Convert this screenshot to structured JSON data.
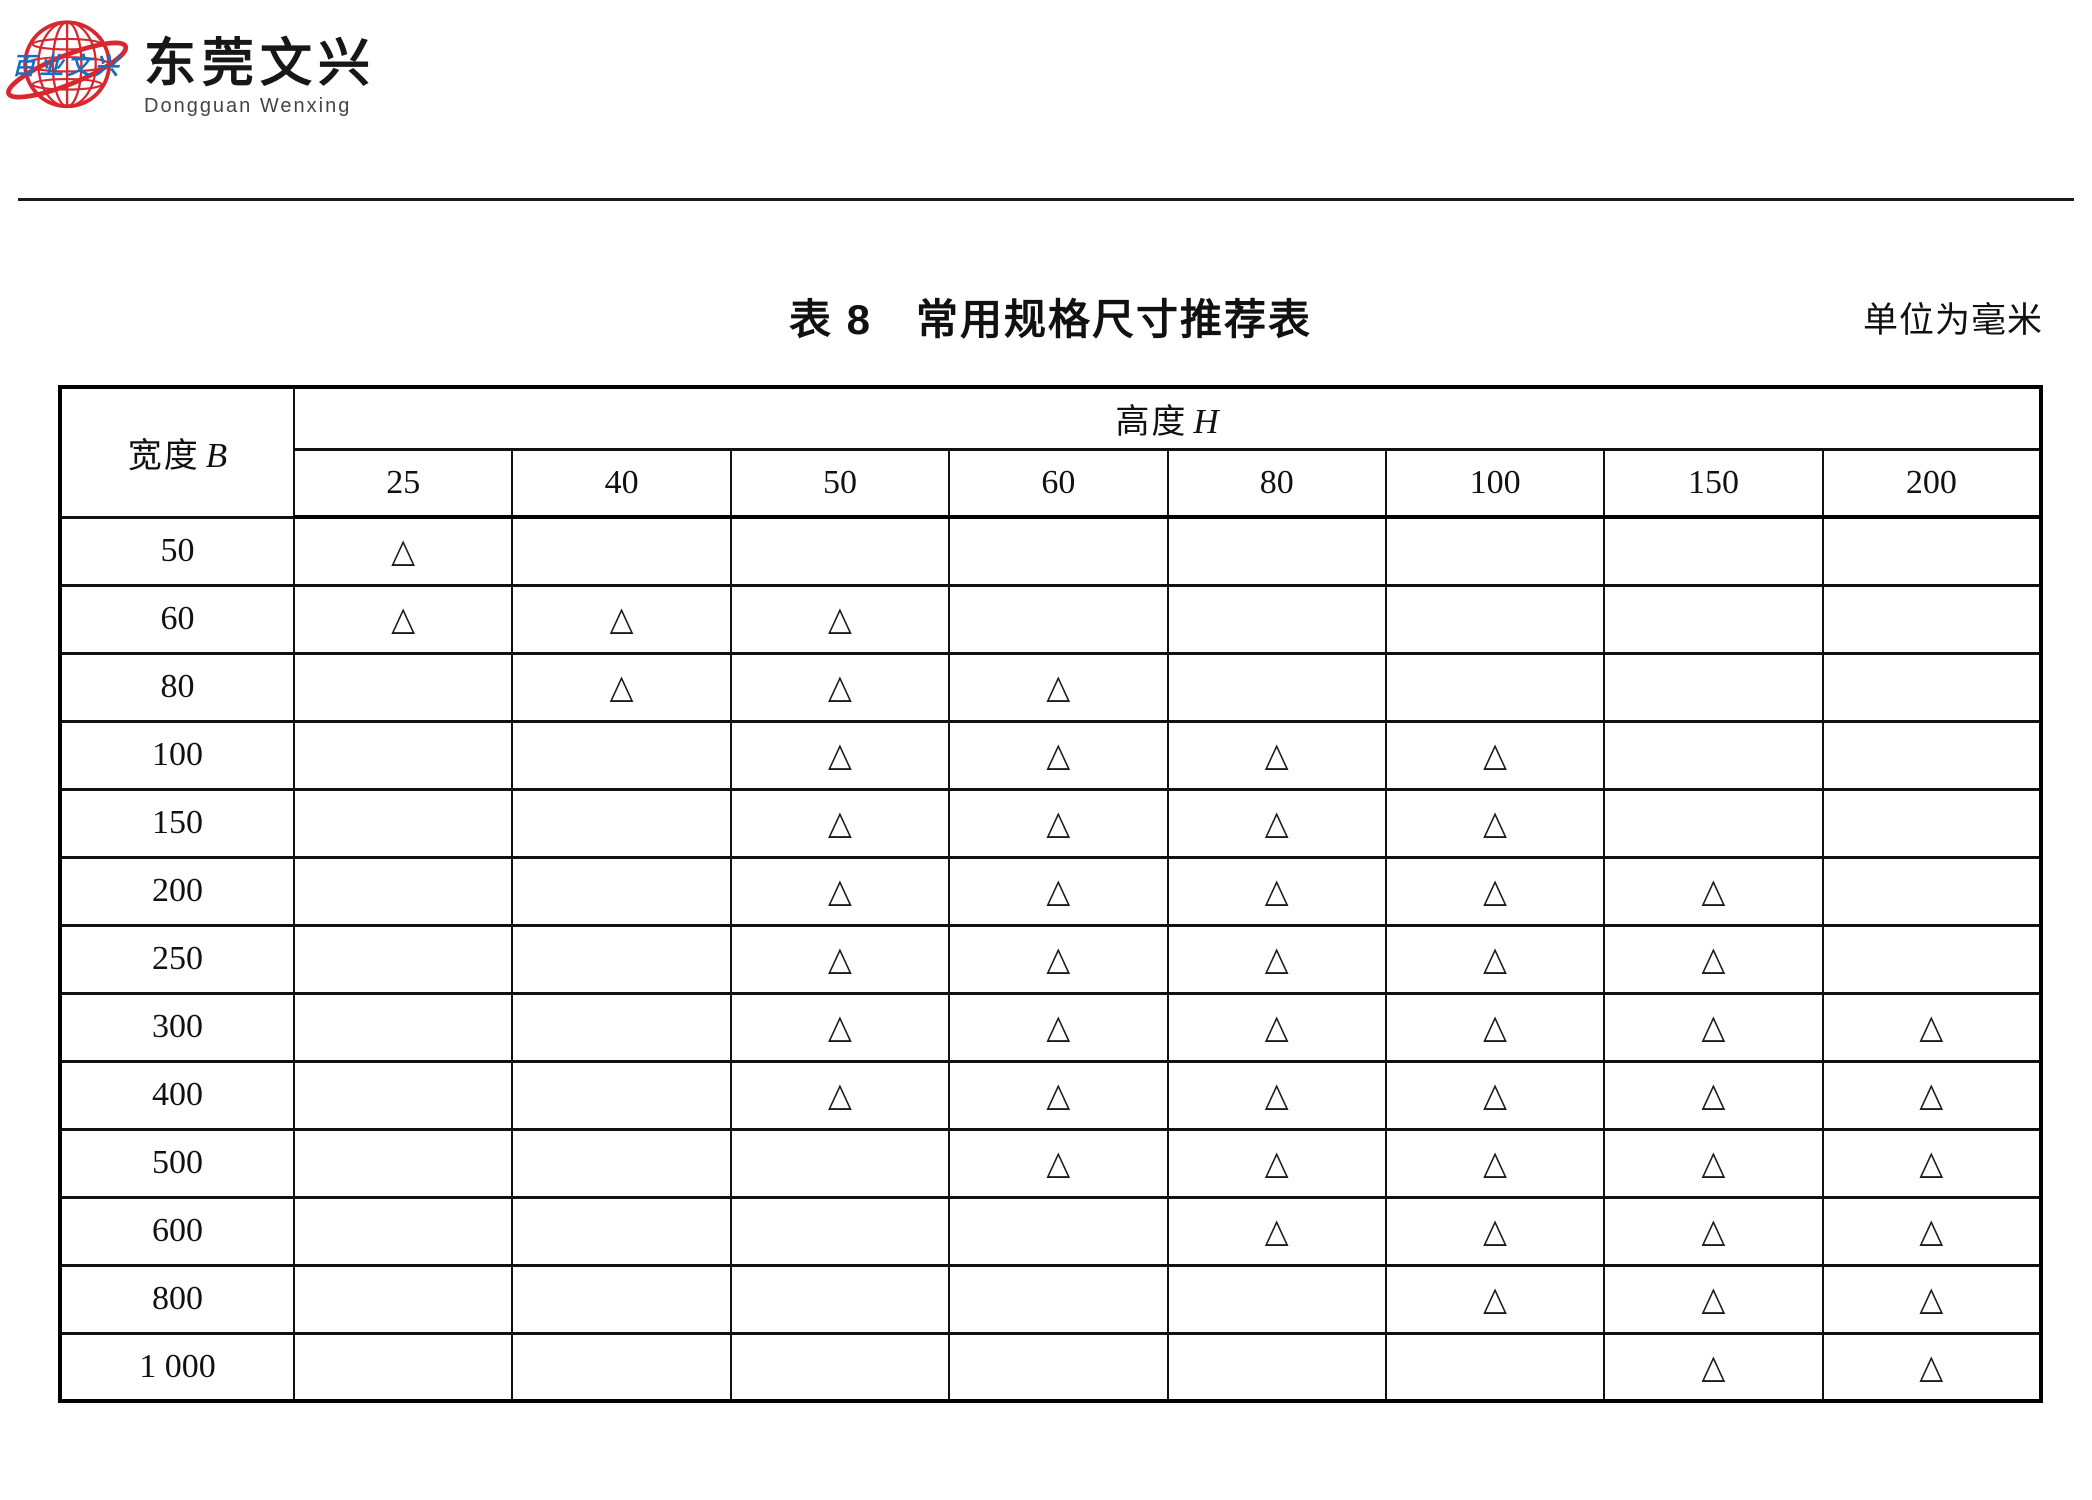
{
  "logo": {
    "globe_text": "百业文兴",
    "company_name_cn": "东莞文兴",
    "company_name_en": "Dongguan Wenxing",
    "globe_color": "#d7282f",
    "globe_text_color": "#1a6ec0"
  },
  "caption": {
    "title": "表 8　常用规格尺寸推荐表",
    "unit_note": "单位为毫米"
  },
  "table": {
    "corner_header": {
      "prefix": "宽度",
      "symbol": "B"
    },
    "group_header": {
      "prefix": "高度",
      "symbol": "H"
    },
    "columns": [
      "25",
      "40",
      "50",
      "60",
      "80",
      "100",
      "150",
      "200"
    ],
    "mark_symbol": "△",
    "rows": [
      {
        "label": "50",
        "marks": [
          1,
          0,
          0,
          0,
          0,
          0,
          0,
          0
        ]
      },
      {
        "label": "60",
        "marks": [
          1,
          1,
          1,
          0,
          0,
          0,
          0,
          0
        ]
      },
      {
        "label": "80",
        "marks": [
          0,
          1,
          1,
          1,
          0,
          0,
          0,
          0
        ]
      },
      {
        "label": "100",
        "marks": [
          0,
          0,
          1,
          1,
          1,
          1,
          0,
          0
        ]
      },
      {
        "label": "150",
        "marks": [
          0,
          0,
          1,
          1,
          1,
          1,
          0,
          0
        ]
      },
      {
        "label": "200",
        "marks": [
          0,
          0,
          1,
          1,
          1,
          1,
          1,
          0
        ]
      },
      {
        "label": "250",
        "marks": [
          0,
          0,
          1,
          1,
          1,
          1,
          1,
          0
        ]
      },
      {
        "label": "300",
        "marks": [
          0,
          0,
          1,
          1,
          1,
          1,
          1,
          1
        ]
      },
      {
        "label": "400",
        "marks": [
          0,
          0,
          1,
          1,
          1,
          1,
          1,
          1
        ]
      },
      {
        "label": "500",
        "marks": [
          0,
          0,
          0,
          1,
          1,
          1,
          1,
          1
        ]
      },
      {
        "label": "600",
        "marks": [
          0,
          0,
          0,
          0,
          1,
          1,
          1,
          1
        ]
      },
      {
        "label": "800",
        "marks": [
          0,
          0,
          0,
          0,
          0,
          1,
          1,
          1
        ]
      },
      {
        "label": "1 000",
        "marks": [
          0,
          0,
          0,
          0,
          0,
          0,
          1,
          1
        ]
      }
    ]
  }
}
